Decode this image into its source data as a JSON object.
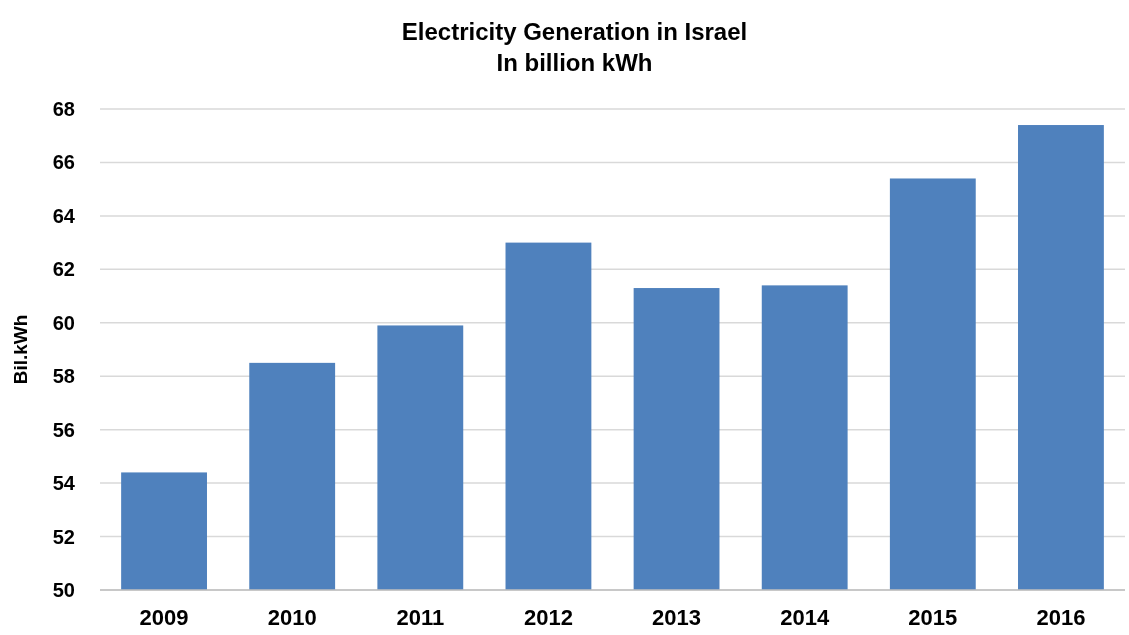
{
  "chart_data": {
    "type": "bar",
    "title": "Electricity Generation in Israel",
    "subtitle": "In billion kWh",
    "ylabel": "Bil.kWh",
    "categories": [
      "2009",
      "2010",
      "2011",
      "2012",
      "2013",
      "2014",
      "2015",
      "2016"
    ],
    "values": [
      54.4,
      58.5,
      59.9,
      63.0,
      61.3,
      61.4,
      65.4,
      67.4
    ],
    "color": "#4f81bd",
    "ylim": [
      50,
      68
    ],
    "yticks": [
      50,
      52,
      54,
      56,
      58,
      60,
      62,
      64,
      66,
      68
    ],
    "grid": "y"
  }
}
